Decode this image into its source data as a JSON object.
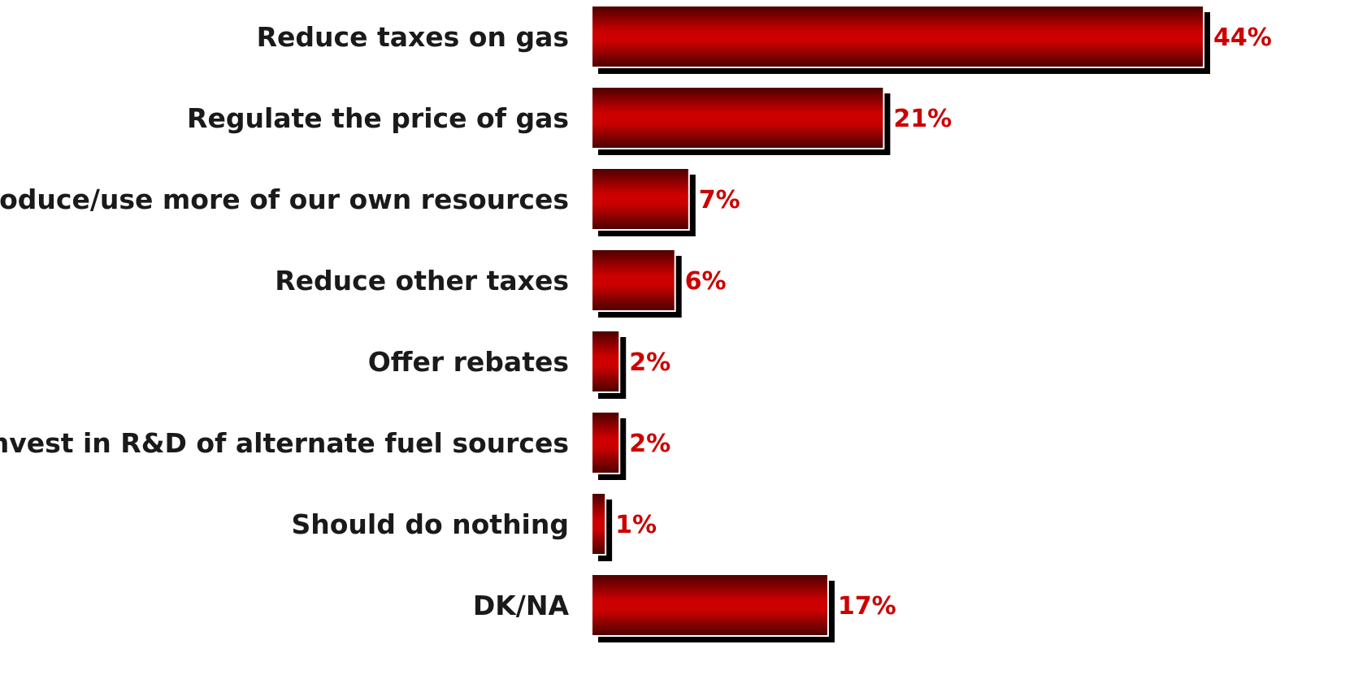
{
  "chart_data": {
    "type": "bar",
    "orientation": "horizontal",
    "categories": [
      "Reduce taxes on gas",
      "Regulate the price of gas",
      "Produce/use more of our own resources",
      "Reduce other taxes",
      "Offer rebates",
      "Invest in R&D of alternate fuel sources",
      "Should do nothing",
      "DK/NA"
    ],
    "values": [
      44,
      21,
      7,
      6,
      2,
      2,
      1,
      17
    ],
    "value_labels": [
      "44%",
      "21%",
      "7%",
      "6%",
      "2%",
      "2%",
      "1%",
      "17%"
    ],
    "unit": "%",
    "xlim": [
      0,
      44
    ],
    "title": "",
    "xlabel": "",
    "ylabel": "",
    "grid": false,
    "legend": "none",
    "colors": {
      "bar_center": "#cc0000",
      "bar_edge": "#4a0000",
      "bar_shadow": "#000000",
      "value_label": "#cc0000",
      "category_label": "#1a1a1a"
    }
  }
}
